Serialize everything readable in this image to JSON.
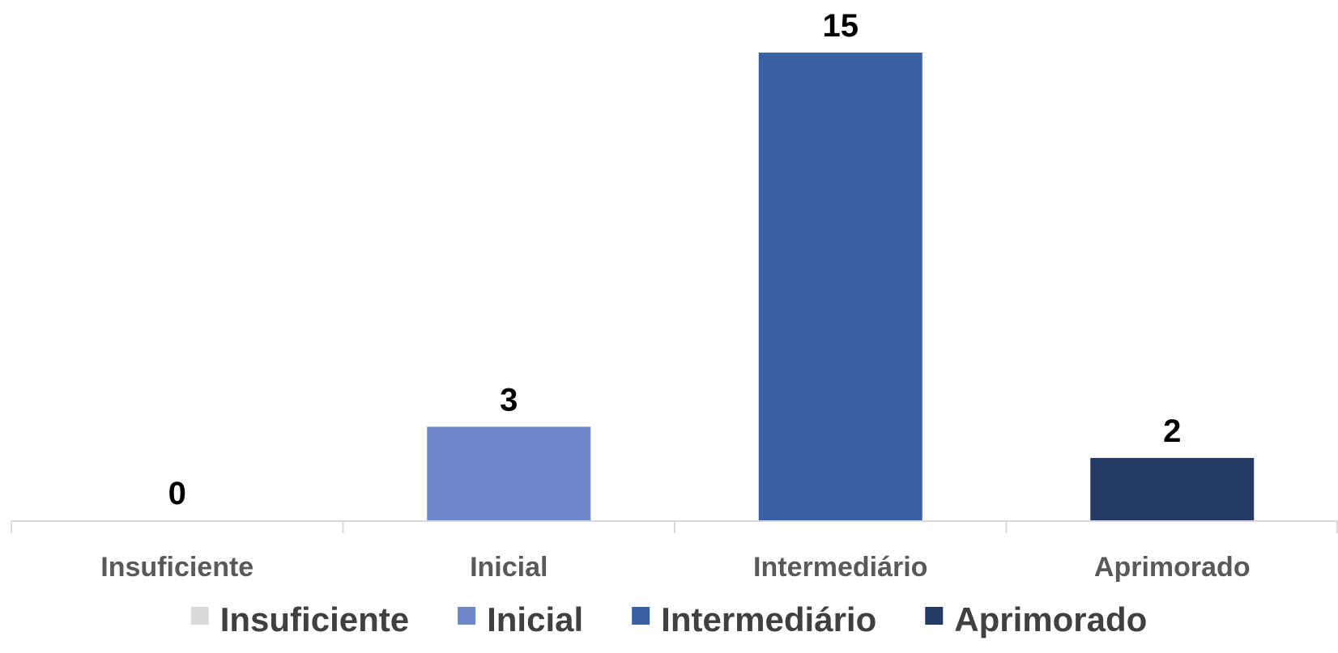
{
  "chart_data": {
    "type": "bar",
    "categories": [
      "Insuficiente",
      "Inicial",
      "Intermediário",
      "Aprimorado"
    ],
    "values": [
      0,
      3,
      15,
      2
    ],
    "data_labels": [
      "0",
      "3",
      "15",
      "2"
    ],
    "colors": [
      "#d9d9d9",
      "#6e88c9",
      "#3a61a6",
      "#243a63"
    ],
    "title": "",
    "xlabel": "",
    "ylabel": "",
    "ylim": [
      0,
      15
    ],
    "grid": false,
    "legend": {
      "position": "bottom",
      "entries": [
        "Insuficiente",
        "Inicial",
        "Intermediário",
        "Aprimorado"
      ]
    },
    "axis_color": "#d9d9d9"
  }
}
